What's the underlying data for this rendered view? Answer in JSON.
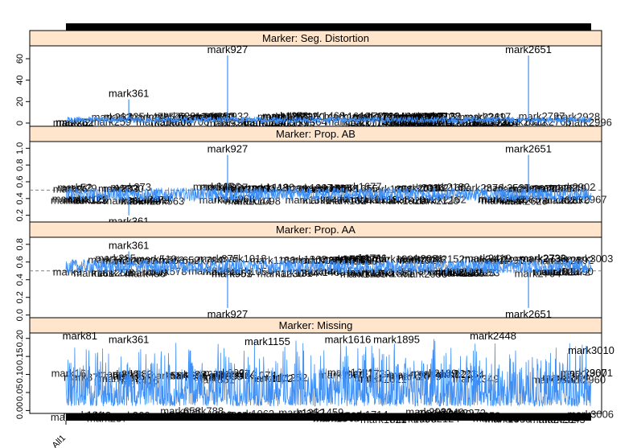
{
  "chart_data": {
    "type": "line",
    "n_markers": 3010,
    "x_tick_labels": [
      "All1"
    ],
    "panels": [
      {
        "title": "Marker: Seg. Distortion",
        "ylim": [
          -3,
          72
        ],
        "yticks": [
          "0",
          "20",
          "40",
          "60"
        ],
        "ytick_values": [
          0,
          20,
          40,
          60
        ],
        "reference_line": null,
        "baseline": 3,
        "spread": 3,
        "labeled_points": [
          {
            "label": "mark361",
            "x": 361,
            "y": 22
          },
          {
            "label": "mark927",
            "x": 927,
            "y": 63
          },
          {
            "label": "mark2651",
            "x": 2651,
            "y": 63
          }
        ]
      },
      {
        "title": "Marker: Prop. AB",
        "ylim": [
          0.12,
          1.08
        ],
        "yticks": [
          "0.2",
          "0.4",
          "0.6",
          "0.8",
          "1.0"
        ],
        "ytick_values": [
          0.2,
          0.4,
          0.6,
          0.8,
          1.0
        ],
        "reference_line": 0.5,
        "baseline": 0.45,
        "spread": 0.08,
        "labeled_points": [
          {
            "label": "mark927",
            "x": 927,
            "y": 0.92
          },
          {
            "label": "mark2651",
            "x": 2651,
            "y": 0.92
          },
          {
            "label": "mark361",
            "x": 361,
            "y": 0.2
          }
        ]
      },
      {
        "title": "Marker: Prop. AA",
        "ylim": [
          -0.03,
          0.88
        ],
        "yticks": [
          "0.0",
          "0.2",
          "0.4",
          "0.6",
          "0.8"
        ],
        "ytick_values": [
          0.0,
          0.2,
          0.4,
          0.6,
          0.8
        ],
        "reference_line": 0.5,
        "baseline": 0.55,
        "spread": 0.08,
        "labeled_points": [
          {
            "label": "mark361",
            "x": 361,
            "y": 0.72
          },
          {
            "label": "mark927",
            "x": 927,
            "y": 0.08
          },
          {
            "label": "mark2651",
            "x": 2651,
            "y": 0.08
          }
        ]
      },
      {
        "title": "Marker: Missing",
        "ylim": [
          -0.008,
          0.215
        ],
        "yticks": [
          "0.00",
          "0.05",
          "0.10",
          "0.15",
          "0.20"
        ],
        "ytick_values": [
          0.0,
          0.05,
          0.1,
          0.15,
          0.2
        ],
        "reference_line": null,
        "baseline": 0.04,
        "spread": 0.06,
        "labeled_points": [
          {
            "label": "mark81",
            "x": 81,
            "y": 0.19
          },
          {
            "label": "mark361",
            "x": 361,
            "y": 0.18
          },
          {
            "label": "mark1155",
            "x": 1155,
            "y": 0.175
          },
          {
            "label": "mark1616",
            "x": 1616,
            "y": 0.18
          },
          {
            "label": "mark1895",
            "x": 1895,
            "y": 0.18
          },
          {
            "label": "mark2448",
            "x": 2448,
            "y": 0.19
          },
          {
            "label": "mark3010",
            "x": 3010,
            "y": 0.15
          },
          {
            "label": "mark2465",
            "x": 2465,
            "y": -0.005
          }
        ]
      }
    ],
    "colors": {
      "line": "#3d8ef5",
      "strip": "#ffe5cc",
      "reference": "#808080",
      "rug": "#000000"
    }
  }
}
